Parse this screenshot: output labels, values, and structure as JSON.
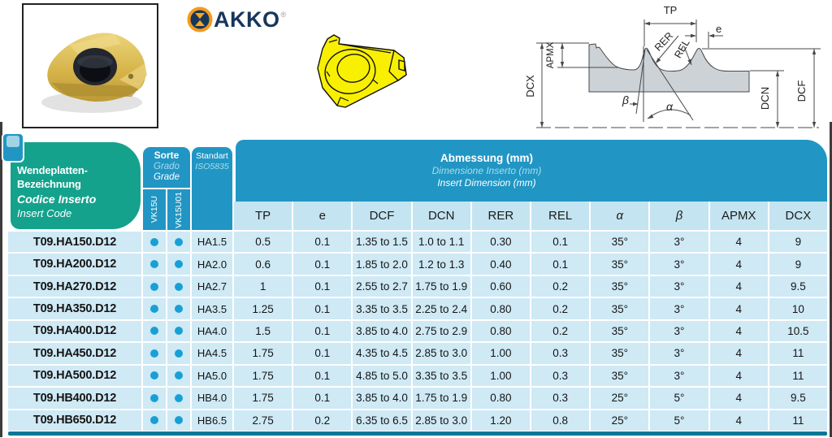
{
  "brand": {
    "logo_text": "AKKO",
    "registered_mark": "®"
  },
  "colors": {
    "teal_header": "#14A28C",
    "blue_header": "#2196C4",
    "subheader_cell": "#C4E4F1",
    "row_background": "#CFE9F5",
    "grade_dot": "#18A0D6",
    "bottom_bar": "#0B7795",
    "secondary_header_text": "#A8DCEC",
    "logo_orange": "#F39B1D",
    "logo_navy": "#17365C",
    "insert_gold": "#D9B84A",
    "insert_yellow": "#F8F000",
    "diagram_fill": "#CDD2D6"
  },
  "diagram": {
    "labels": {
      "tp": "TP",
      "e": "e",
      "rer": "RER",
      "rel": "REL",
      "apmx": "APMX",
      "dcx": "DCX",
      "dcn": "DCN",
      "dcf": "DCF",
      "alpha": "α",
      "beta": "β"
    }
  },
  "table": {
    "title_de": "Wendeplatten-Bezeichnung",
    "title_it": "Codice Inserto",
    "title_en": "Insert Code",
    "grade_de": "Sorte",
    "grade_it": "Grado",
    "grade_en": "Grade",
    "grade_columns": [
      "VK15U",
      "VK15U01"
    ],
    "standard_line1": "Standart",
    "standard_line2": "ISO5835",
    "dimension_de": "Abmessung (mm)",
    "dimension_it": "Dimensione Inserto (mm)",
    "dimension_en": "Insert Dimension (mm)",
    "columns": [
      "TP",
      "e",
      "DCF",
      "DCN",
      "RER",
      "REL",
      "α",
      "β",
      "APMX",
      "DCX"
    ],
    "rows": [
      {
        "code": "T09.HA150.D12",
        "vk15u": true,
        "vk15u01": true,
        "standard": "HA1.5",
        "values": [
          "0.5",
          "0.1",
          "1.35 to 1.5",
          "1.0 to 1.1",
          "0.30",
          "0.1",
          "35°",
          "3°",
          "4",
          "9"
        ]
      },
      {
        "code": "T09.HA200.D12",
        "vk15u": true,
        "vk15u01": true,
        "standard": "HA2.0",
        "values": [
          "0.6",
          "0.1",
          "1.85 to 2.0",
          "1.2 to 1.3",
          "0.40",
          "0.1",
          "35°",
          "3°",
          "4",
          "9"
        ]
      },
      {
        "code": "T09.HA270.D12",
        "vk15u": true,
        "vk15u01": true,
        "standard": "HA2.7",
        "values": [
          "1",
          "0.1",
          "2.55 to 2.7",
          "1.75 to 1.9",
          "0.60",
          "0.2",
          "35°",
          "3°",
          "4",
          "9.5"
        ]
      },
      {
        "code": "T09.HA350.D12",
        "vk15u": true,
        "vk15u01": true,
        "standard": "HA3.5",
        "values": [
          "1.25",
          "0.1",
          "3.35 to 3.5",
          "2.25 to 2.4",
          "0.80",
          "0.2",
          "35°",
          "3°",
          "4",
          "10"
        ]
      },
      {
        "code": "T09.HA400.D12",
        "vk15u": true,
        "vk15u01": true,
        "standard": "HA4.0",
        "values": [
          "1.5",
          "0.1",
          "3.85 to 4.0",
          "2.75 to 2.9",
          "0.80",
          "0.2",
          "35°",
          "3°",
          "4",
          "10.5"
        ]
      },
      {
        "code": "T09.HA450.D12",
        "vk15u": true,
        "vk15u01": true,
        "standard": "HA4.5",
        "values": [
          "1.75",
          "0.1",
          "4.35 to 4.5",
          "2.85 to 3.0",
          "1.00",
          "0.3",
          "35°",
          "3°",
          "4",
          "11"
        ]
      },
      {
        "code": "T09.HA500.D12",
        "vk15u": true,
        "vk15u01": true,
        "standard": "HA5.0",
        "values": [
          "1.75",
          "0.1",
          "4.85 to 5.0",
          "3.35 to 3.5",
          "1.00",
          "0.3",
          "35°",
          "3°",
          "4",
          "11"
        ]
      },
      {
        "code": "T09.HB400.D12",
        "vk15u": true,
        "vk15u01": true,
        "standard": "HB4.0",
        "values": [
          "1.75",
          "0.1",
          "3.85 to 4.0",
          "1.75 to 1.9",
          "0.80",
          "0.3",
          "25°",
          "5°",
          "4",
          "9.5"
        ]
      },
      {
        "code": "T09.HB650.D12",
        "vk15u": true,
        "vk15u01": true,
        "standard": "HB6.5",
        "values": [
          "2.75",
          "0.2",
          "6.35 to 6.5",
          "2.85 to 3.0",
          "1.20",
          "0.8",
          "25°",
          "5°",
          "4",
          "11"
        ]
      }
    ]
  }
}
